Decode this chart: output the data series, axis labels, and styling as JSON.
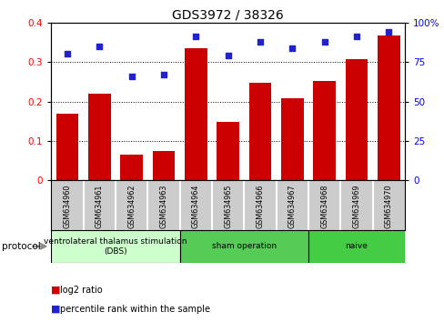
{
  "title": "GDS3972 / 38326",
  "samples": [
    "GSM634960",
    "GSM634961",
    "GSM634962",
    "GSM634963",
    "GSM634964",
    "GSM634965",
    "GSM634966",
    "GSM634967",
    "GSM634968",
    "GSM634969",
    "GSM634970"
  ],
  "log2_ratio": [
    0.17,
    0.22,
    0.065,
    0.075,
    0.335,
    0.148,
    0.248,
    0.207,
    0.252,
    0.308,
    0.368
  ],
  "percentile_rank": [
    80,
    85,
    66,
    67,
    91,
    79,
    88,
    84,
    88,
    91,
    94
  ],
  "bar_color": "#cc0000",
  "dot_color": "#2222cc",
  "ylim_left": [
    0,
    0.4
  ],
  "ylim_right": [
    0,
    100
  ],
  "yticks_left": [
    0,
    0.1,
    0.2,
    0.3,
    0.4
  ],
  "yticks_right": [
    0,
    25,
    50,
    75,
    100
  ],
  "groups": [
    {
      "label": "ventrolateral thalamus stimulation\n(DBS)",
      "start": 0,
      "end": 3,
      "color": "#ccffcc"
    },
    {
      "label": "sham operation",
      "start": 4,
      "end": 7,
      "color": "#55cc55"
    },
    {
      "label": "naive",
      "start": 8,
      "end": 10,
      "color": "#44cc44"
    }
  ],
  "protocol_label": "protocol",
  "legend_bar_label": "log2 ratio",
  "legend_dot_label": "percentile rank within the sample",
  "sample_box_color": "#cccccc",
  "sample_box_edge": "#ffffff"
}
